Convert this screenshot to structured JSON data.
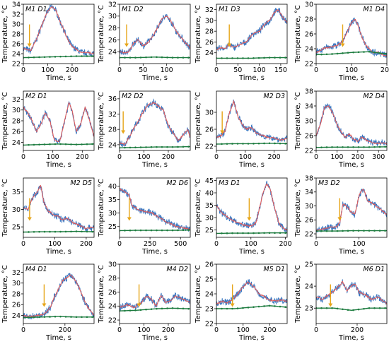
{
  "xlabel": "Time, s",
  "ylabel": "Temperature, °C",
  "colors": {
    "noisy": "#3a78c2",
    "smooth": "#e05c5c",
    "reference": "#1b7a3e",
    "reference_marker": "#2b8a4a",
    "arrow": "#e6a519"
  },
  "chart_data": [
    {
      "title": "M1 D1",
      "type": "line",
      "xlim": [
        0,
        290
      ],
      "ylim": [
        22,
        34
      ],
      "xticks": [
        0,
        100,
        200
      ],
      "yticks": [
        22,
        24,
        26,
        28,
        30,
        32,
        34
      ],
      "title_pos": "top-left",
      "arrow_x": 25,
      "x": [
        0,
        20,
        30,
        40,
        55,
        70,
        85,
        100,
        115,
        130,
        140,
        150,
        165,
        180,
        200,
        220,
        240,
        260,
        290
      ],
      "y": [
        25.0,
        24.8,
        24.5,
        25.5,
        27.0,
        29.0,
        31.0,
        32.5,
        33.5,
        33.0,
        32.0,
        30.5,
        29.0,
        27.0,
        25.5,
        24.8,
        24.2,
        24.2,
        24.0
      ],
      "ref": [
        23.2,
        23.3,
        23.4,
        23.5,
        23.5
      ]
    },
    {
      "title": "M1 D2",
      "type": "line",
      "xlim": [
        0,
        150
      ],
      "ylim": [
        22,
        32
      ],
      "xticks": [
        0,
        50,
        100
      ],
      "yticks": [
        24,
        26,
        28,
        30,
        32
      ],
      "title_pos": "top-left",
      "arrow_x": 15,
      "x": [
        0,
        10,
        20,
        30,
        40,
        50,
        60,
        70,
        80,
        90,
        100,
        110,
        120,
        130,
        140,
        150
      ],
      "y": [
        24.0,
        23.8,
        24.0,
        25.5,
        26.0,
        25.0,
        25.5,
        26.5,
        28.0,
        29.5,
        30.0,
        29.0,
        27.5,
        26.5,
        25.5,
        24.5
      ],
      "ref": [
        23.0,
        23.0,
        23.1,
        23.0,
        23.0
      ]
    },
    {
      "title": "M1 D3",
      "type": "line",
      "xlim": [
        0,
        165
      ],
      "ylim": [
        22,
        33
      ],
      "xticks": [
        0,
        50,
        100,
        150
      ],
      "yticks": [
        24,
        26,
        28,
        30,
        32
      ],
      "title_pos": "top-left",
      "arrow_x": 30,
      "x": [
        0,
        10,
        20,
        30,
        40,
        55,
        70,
        85,
        100,
        115,
        125,
        135,
        145,
        155,
        165
      ],
      "y": [
        24.5,
        25.0,
        24.8,
        25.5,
        25.0,
        25.5,
        26.0,
        27.5,
        28.0,
        29.5,
        30.0,
        31.5,
        32.0,
        30.5,
        29.5
      ],
      "ref": [
        23.0,
        23.0,
        23.0,
        23.1,
        23.1
      ]
    },
    {
      "title": "M1 D4",
      "type": "line",
      "xlim": [
        0,
        200
      ],
      "ylim": [
        22,
        30
      ],
      "xticks": [
        0,
        100,
        200
      ],
      "yticks": [
        22,
        24,
        26,
        28,
        30
      ],
      "title_pos": "top-right",
      "arrow_x": 75,
      "x": [
        0,
        20,
        40,
        60,
        75,
        90,
        100,
        110,
        120,
        130,
        140,
        150,
        160,
        175,
        190,
        200
      ],
      "y": [
        23.5,
        24.0,
        24.2,
        24.5,
        25.0,
        26.5,
        27.5,
        28.0,
        27.0,
        25.5,
        24.5,
        24.0,
        23.5,
        23.5,
        23.2,
        23.0
      ],
      "ref": [
        23.2,
        23.3,
        23.5,
        23.6,
        23.3
      ]
    },
    {
      "title": "M2 D1",
      "type": "line",
      "xlim": [
        0,
        240
      ],
      "ylim": [
        22.5,
        33.5
      ],
      "xticks": [
        0,
        100,
        200
      ],
      "yticks": [
        24,
        26,
        28,
        30,
        32
      ],
      "title_pos": "top-left",
      "arrow_x": null,
      "x": [
        0,
        15,
        30,
        45,
        60,
        75,
        90,
        105,
        115,
        125,
        140,
        155,
        165,
        180,
        195,
        210,
        225,
        240
      ],
      "y": [
        30.5,
        29.5,
        28.0,
        26.0,
        27.5,
        29.5,
        28.0,
        24.5,
        24.0,
        24.5,
        28.0,
        31.5,
        30.0,
        26.0,
        27.5,
        30.5,
        28.0,
        25.0
      ],
      "ref": [
        23.5,
        23.6,
        23.7,
        23.6,
        23.7
      ]
    },
    {
      "title": "M2 D2",
      "type": "line",
      "xlim": [
        0,
        290
      ],
      "ylim": [
        22.5,
        38
      ],
      "xticks": [
        0,
        100,
        200
      ],
      "yticks": [
        24,
        28,
        32,
        36
      ],
      "title_pos": "top-left",
      "arrow_x": 15,
      "x": [
        0,
        20,
        40,
        60,
        80,
        100,
        120,
        140,
        160,
        180,
        200,
        220,
        240,
        260,
        280,
        290
      ],
      "y": [
        24.5,
        24.0,
        26.0,
        28.5,
        30.5,
        33.0,
        34.5,
        35.0,
        34.0,
        33.0,
        29.0,
        27.0,
        25.0,
        26.5,
        28.0,
        26.0
      ],
      "ref": [
        23.2,
        23.3,
        23.4,
        23.4,
        23.5
      ]
    },
    {
      "title": "M2 D3",
      "type": "line",
      "xlim": [
        0,
        245
      ],
      "ylim": [
        21,
        35
      ],
      "xticks": [
        0,
        100,
        200
      ],
      "yticks": [
        22,
        26,
        30
      ],
      "title_pos": "top-right",
      "arrow_x": 20,
      "x": [
        0,
        15,
        30,
        45,
        60,
        75,
        90,
        105,
        120,
        140,
        160,
        180,
        200,
        220,
        245
      ],
      "y": [
        24.0,
        24.5,
        25.5,
        30.0,
        32.5,
        29.0,
        27.0,
        26.0,
        26.5,
        25.0,
        24.5,
        24.0,
        24.0,
        23.5,
        23.8
      ],
      "ref": [
        22.5,
        22.6,
        22.6,
        22.7,
        22.6
      ]
    },
    {
      "title": "M2 D4",
      "type": "line",
      "xlim": [
        0,
        340
      ],
      "ylim": [
        22,
        38
      ],
      "xticks": [
        0,
        100,
        200,
        300
      ],
      "yticks": [
        22,
        26,
        30,
        34,
        38
      ],
      "title_pos": "top-right",
      "arrow_x": null,
      "x": [
        0,
        20,
        40,
        60,
        80,
        100,
        120,
        140,
        160,
        180,
        200,
        220,
        250,
        280,
        310,
        340
      ],
      "y": [
        26.0,
        29.0,
        33.5,
        34.0,
        32.0,
        29.0,
        27.0,
        25.5,
        26.5,
        25.0,
        24.5,
        25.5,
        24.5,
        24.0,
        24.0,
        23.8
      ],
      "ref": [
        22.8,
        22.9,
        22.9,
        22.9,
        23.0
      ]
    },
    {
      "title": "M2 D5",
      "type": "line",
      "xlim": [
        0,
        225
      ],
      "ylim": [
        22,
        39
      ],
      "xticks": [
        0,
        100,
        200
      ],
      "yticks": [
        25,
        30,
        35
      ],
      "title_pos": "top-right",
      "arrow_x": 20,
      "x": [
        0,
        15,
        30,
        45,
        55,
        65,
        80,
        95,
        110,
        125,
        140,
        160,
        180,
        200,
        225
      ],
      "y": [
        30.5,
        30.0,
        33.5,
        35.0,
        37.0,
        32.0,
        29.5,
        28.5,
        28.0,
        27.0,
        27.5,
        26.0,
        25.5,
        24.5,
        25.0
      ],
      "ref": [
        23.5,
        23.6,
        23.6,
        23.7,
        23.6
      ]
    },
    {
      "title": "M2 D6",
      "type": "line",
      "xlim": [
        0,
        580
      ],
      "ylim": [
        21,
        43
      ],
      "xticks": [
        0,
        250,
        500
      ],
      "yticks": [
        25,
        30,
        35,
        40
      ],
      "title_pos": "top-right",
      "arrow_x": 80,
      "x": [
        0,
        40,
        80,
        100,
        130,
        170,
        220,
        270,
        320,
        370,
        420,
        470,
        520,
        580
      ],
      "y": [
        39.0,
        38.0,
        36.5,
        33.0,
        32.0,
        31.0,
        30.5,
        30.0,
        28.5,
        27.0,
        26.0,
        25.0,
        24.5,
        24.0
      ],
      "ref": [
        23.5,
        23.6,
        23.6,
        23.6,
        23.7
      ]
    },
    {
      "title": "M3 D1",
      "type": "line",
      "xlim": [
        0,
        205
      ],
      "ylim": [
        22,
        46
      ],
      "xticks": [
        0,
        100,
        200
      ],
      "yticks": [
        25,
        30,
        35,
        40,
        45
      ],
      "title_pos": "top-left",
      "arrow_x": 95,
      "x": [
        0,
        15,
        30,
        45,
        60,
        80,
        100,
        115,
        125,
        135,
        145,
        155,
        165,
        180,
        195,
        205
      ],
      "y": [
        35.0,
        32.0,
        30.5,
        29.0,
        28.0,
        27.0,
        26.5,
        28.0,
        34.0,
        40.0,
        43.5,
        42.0,
        36.0,
        28.0,
        25.5,
        25.0
      ],
      "ref": [
        23.6,
        23.7,
        23.7,
        23.8,
        23.8
      ]
    },
    {
      "title": "M3 D2",
      "type": "line",
      "xlim": [
        0,
        165
      ],
      "ylim": [
        21,
        38
      ],
      "xticks": [
        0,
        100
      ],
      "yticks": [
        22,
        26,
        30,
        34,
        38
      ],
      "title_pos": "top-left",
      "arrow_x": 55,
      "x": [
        0,
        15,
        30,
        45,
        55,
        62,
        70,
        80,
        90,
        100,
        110,
        120,
        135,
        150,
        165
      ],
      "y": [
        23.0,
        23.3,
        23.8,
        24.0,
        25.0,
        30.5,
        30.0,
        28.5,
        27.5,
        33.0,
        35.0,
        31.5,
        30.5,
        29.0,
        27.5
      ],
      "ref": [
        22.8,
        22.8,
        22.9,
        22.9,
        22.9
      ]
    },
    {
      "title": "M4 D1",
      "type": "line",
      "xlim": [
        0,
        340
      ],
      "ylim": [
        22.5,
        33.5
      ],
      "xticks": [
        0,
        200
      ],
      "yticks": [
        24,
        26,
        28,
        30,
        32
      ],
      "title_pos": "top-left",
      "arrow_x": 100,
      "x": [
        0,
        30,
        60,
        100,
        130,
        150,
        170,
        190,
        210,
        230,
        250,
        270,
        290,
        310,
        330,
        340
      ],
      "y": [
        24.0,
        23.8,
        24.0,
        24.2,
        25.5,
        27.5,
        29.0,
        30.5,
        31.0,
        31.5,
        30.5,
        29.0,
        27.0,
        25.5,
        24.5,
        24.0
      ],
      "ref": [
        23.6,
        23.7,
        23.8,
        23.7,
        23.7
      ]
    },
    {
      "title": "M4 D2",
      "type": "line",
      "xlim": [
        0,
        290
      ],
      "ylim": [
        21.5,
        30
      ],
      "xticks": [
        0,
        100,
        200
      ],
      "yticks": [
        22,
        24,
        26,
        28,
        30
      ],
      "title_pos": "top-right",
      "arrow_x": 80,
      "x": [
        0,
        30,
        60,
        90,
        110,
        130,
        150,
        170,
        190,
        210,
        230,
        260,
        290
      ],
      "y": [
        23.8,
        24.2,
        23.8,
        24.5,
        25.5,
        25.0,
        24.0,
        25.5,
        24.5,
        24.8,
        25.5,
        25.0,
        24.5
      ],
      "ref": [
        23.3,
        23.4,
        23.6,
        23.7,
        23.6
      ]
    },
    {
      "title": "M5 D1",
      "type": "line",
      "xlim": [
        0,
        265
      ],
      "ylim": [
        22,
        26
      ],
      "xticks": [
        0,
        100,
        200
      ],
      "yticks": [
        22,
        23,
        24,
        25,
        26
      ],
      "title_pos": "top-right",
      "arrow_x": 60,
      "x": [
        0,
        20,
        40,
        60,
        80,
        100,
        120,
        140,
        160,
        180,
        200,
        220,
        240,
        265
      ],
      "y": [
        23.3,
        23.5,
        23.4,
        23.6,
        24.0,
        24.5,
        24.8,
        24.5,
        24.0,
        23.8,
        23.6,
        23.5,
        23.6,
        23.5
      ],
      "ref": [
        23.0,
        23.0,
        23.1,
        23.2,
        23.1
      ]
    },
    {
      "title": "M6 D1",
      "type": "line",
      "xlim": [
        0,
        345
      ],
      "ylim": [
        22.3,
        25
      ],
      "xticks": [
        0,
        200
      ],
      "yticks": [
        23,
        24,
        25
      ],
      "title_pos": "top-right",
      "arrow_x": 70,
      "x": [
        0,
        30,
        60,
        90,
        110,
        130,
        150,
        170,
        190,
        210,
        240,
        270,
        300,
        345
      ],
      "y": [
        23.5,
        23.4,
        23.6,
        23.8,
        24.0,
        24.2,
        23.8,
        24.0,
        24.1,
        23.7,
        23.6,
        23.4,
        23.5,
        23.2
      ],
      "ref": [
        23.0,
        23.0,
        22.9,
        23.0,
        23.0
      ]
    }
  ]
}
